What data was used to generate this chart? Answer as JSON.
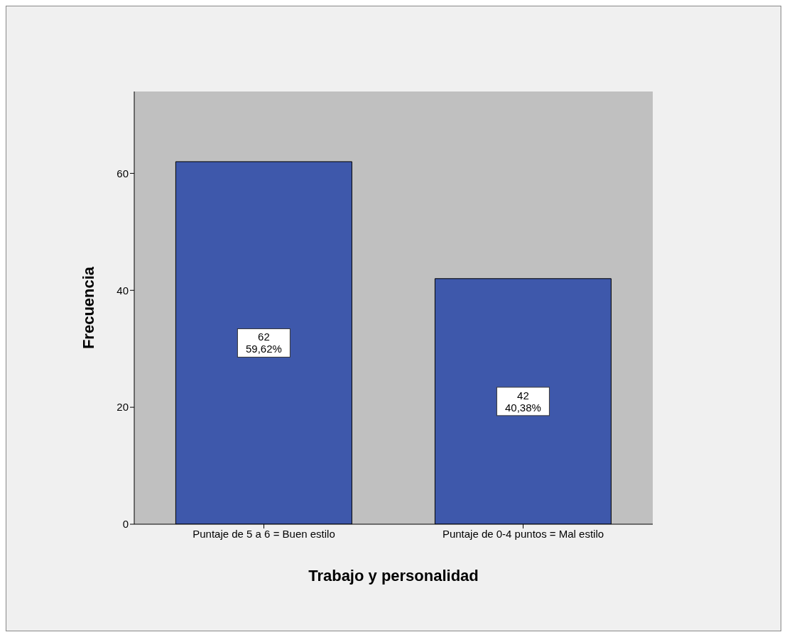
{
  "chart_data": {
    "type": "bar",
    "xlabel": "Trabajo y personalidad",
    "ylabel": "Frecuencia",
    "categories": [
      "Puntaje de 5 a 6 = Buen estilo",
      "Puntaje de 0-4 puntos = Mal estilo"
    ],
    "values": [
      62,
      42
    ],
    "color": "#3e58ab",
    "value_labels": [
      "62\n59,62%",
      "42\n40,38%"
    ],
    "ylim": [
      0,
      74
    ],
    "yticks": [
      0,
      20,
      40,
      60
    ],
    "grid": false,
    "legend": false
  }
}
